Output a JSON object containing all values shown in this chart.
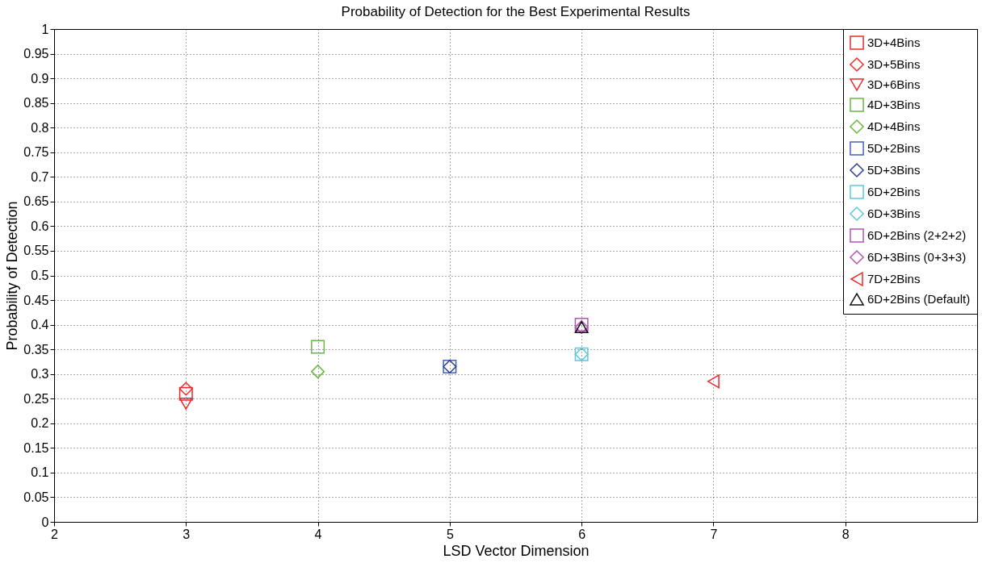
{
  "chart_data": {
    "type": "scatter",
    "title": "Probability of Detection for the Best Experimental Results",
    "xlabel": "LSD Vector Dimension",
    "ylabel": "Probability of Detection",
    "xlim": [
      2,
      9
    ],
    "xticks": [
      2,
      3,
      4,
      5,
      6,
      7,
      8
    ],
    "ylim": [
      0,
      1
    ],
    "yticks": [
      0,
      0.05,
      0.1,
      0.15,
      0.2,
      0.25,
      0.3,
      0.35,
      0.4,
      0.45,
      0.5,
      0.55,
      0.6,
      0.65,
      0.7,
      0.75,
      0.8,
      0.85,
      0.9,
      0.95,
      1
    ],
    "grid": true,
    "legend": "top right",
    "series": [
      {
        "name": "3D+4Bins",
        "color": "#ee2a2a",
        "marker": "square",
        "x": [
          3
        ],
        "values": [
          0.26
        ]
      },
      {
        "name": "3D+5Bins",
        "color": "#ee2a2a",
        "marker": "diamond",
        "x": [
          3
        ],
        "values": [
          0.27
        ]
      },
      {
        "name": "3D+6Bins",
        "color": "#ee2a2a",
        "marker": "triangle-down",
        "x": [
          3
        ],
        "values": [
          0.24
        ]
      },
      {
        "name": "4D+3Bins",
        "color": "#6ab83f",
        "marker": "square",
        "x": [
          4
        ],
        "values": [
          0.355
        ]
      },
      {
        "name": "4D+4Bins",
        "color": "#6ab83f",
        "marker": "diamond",
        "x": [
          4
        ],
        "values": [
          0.305
        ]
      },
      {
        "name": "5D+2Bins",
        "color": "#4462b4",
        "marker": "square",
        "x": [
          5
        ],
        "values": [
          0.315
        ]
      },
      {
        "name": "5D+3Bins",
        "color": "#2c3f94",
        "marker": "diamond",
        "x": [
          5
        ],
        "values": [
          0.315
        ]
      },
      {
        "name": "6D+2Bins",
        "color": "#5fc8dc",
        "marker": "square",
        "x": [
          6
        ],
        "values": [
          0.34
        ]
      },
      {
        "name": "6D+3Bins",
        "color": "#5fc8dc",
        "marker": "diamond",
        "x": [
          6
        ],
        "values": [
          0.34
        ]
      },
      {
        "name": "6D+2Bins (2+2+2)",
        "color": "#b455b4",
        "marker": "square",
        "x": [
          6
        ],
        "values": [
          0.4
        ]
      },
      {
        "name": "6D+3Bins (0+3+3)",
        "color": "#b455b4",
        "marker": "diamond",
        "x": [
          6
        ],
        "values": [
          0.395
        ]
      },
      {
        "name": "7D+2Bins",
        "color": "#ee2a2a",
        "marker": "triangle-left",
        "x": [
          7
        ],
        "values": [
          0.285
        ]
      },
      {
        "name": "6D+2Bins (Default)",
        "color": "#111111",
        "marker": "triangle",
        "x": [
          6
        ],
        "values": [
          0.395
        ]
      }
    ]
  }
}
